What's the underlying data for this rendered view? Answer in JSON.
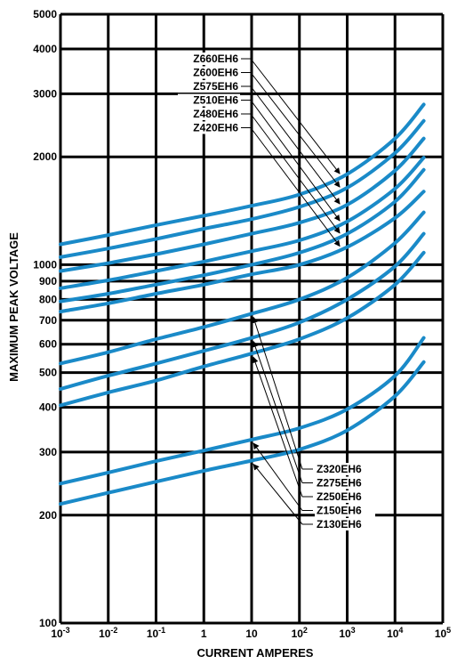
{
  "chart_data": {
    "type": "line",
    "title": "",
    "xlabel": "CURRENT AMPERES",
    "ylabel": "MAXIMUM PEAK VOLTAGE",
    "x_scale": "log",
    "y_scale": "log",
    "xlim": [
      0.001,
      100000
    ],
    "ylim": [
      100,
      5000
    ],
    "grid": true,
    "x_ticks": [
      {
        "value": 0.001,
        "label": "10",
        "exp": "-3"
      },
      {
        "value": 0.01,
        "label": "10",
        "exp": "-2"
      },
      {
        "value": 0.1,
        "label": "10",
        "exp": "-1"
      },
      {
        "value": 1,
        "label": "1",
        "exp": ""
      },
      {
        "value": 10,
        "label": "10",
        "exp": ""
      },
      {
        "value": 100,
        "label": "10",
        "exp": "2"
      },
      {
        "value": 1000,
        "label": "10",
        "exp": "3"
      },
      {
        "value": 10000,
        "label": "10",
        "exp": "4"
      },
      {
        "value": 100000,
        "label": "10",
        "exp": "5"
      }
    ],
    "y_ticks": [
      {
        "value": 100,
        "label": "100"
      },
      {
        "value": 200,
        "label": "200"
      },
      {
        "value": 300,
        "label": "300"
      },
      {
        "value": 400,
        "label": "400"
      },
      {
        "value": 500,
        "label": "500"
      },
      {
        "value": 600,
        "label": "600"
      },
      {
        "value": 700,
        "label": "700"
      },
      {
        "value": 800,
        "label": "800"
      },
      {
        "value": 900,
        "label": "900"
      },
      {
        "value": 1000,
        "label": "1000"
      },
      {
        "value": 2000,
        "label": "2000"
      },
      {
        "value": 3000,
        "label": "3000"
      },
      {
        "value": 4000,
        "label": "4000"
      },
      {
        "value": 5000,
        "label": "5000"
      }
    ],
    "x": [
      0.001,
      0.01,
      0.1,
      1,
      10,
      100,
      1000,
      10000,
      40000
    ],
    "series": [
      {
        "name": "Z660EH6",
        "values": [
          1140,
          1210,
          1290,
          1370,
          1460,
          1570,
          1790,
          2250,
          2800
        ],
        "label_group": "upper"
      },
      {
        "name": "Z600EH6",
        "values": [
          1050,
          1110,
          1180,
          1260,
          1340,
          1450,
          1640,
          2050,
          2520
        ],
        "label_group": "upper"
      },
      {
        "name": "Z575EH6",
        "values": [
          960,
          1010,
          1070,
          1140,
          1220,
          1310,
          1470,
          1830,
          2250
        ],
        "label_group": "upper"
      },
      {
        "name": "Z510EH6",
        "values": [
          860,
          905,
          960,
          1020,
          1090,
          1170,
          1320,
          1630,
          1990
        ],
        "label_group": "upper"
      },
      {
        "name": "Z480EH6",
        "values": [
          790,
          830,
          880,
          935,
          1000,
          1080,
          1220,
          1500,
          1840
        ],
        "label_group": "upper"
      },
      {
        "name": "Z420EH6",
        "values": [
          740,
          780,
          830,
          880,
          940,
          1000,
          1120,
          1350,
          1600
        ],
        "label_group": "upper"
      },
      {
        "name": "Z320EH6",
        "values": [
          530,
          570,
          620,
          670,
          730,
          800,
          920,
          1150,
          1400
        ],
        "label_group": "lower"
      },
      {
        "name": "Z275EH6",
        "values": [
          450,
          490,
          530,
          575,
          625,
          690,
          800,
          990,
          1220
        ],
        "label_group": "lower"
      },
      {
        "name": "Z250EH6",
        "values": [
          405,
          440,
          475,
          520,
          565,
          620,
          710,
          880,
          1080
        ],
        "label_group": "lower"
      },
      {
        "name": "Z150EH6",
        "values": [
          245,
          263,
          283,
          303,
          325,
          350,
          395,
          490,
          625
        ],
        "label_group": "lower"
      },
      {
        "name": "Z130EH6",
        "values": [
          215,
          231,
          248,
          266,
          284,
          305,
          345,
          430,
          535
        ],
        "label_group": "lower"
      }
    ],
    "line_color": "#1a8ac8",
    "colors": {
      "line": "#1a8ac8",
      "grid": "#000000",
      "text": "#000000"
    }
  }
}
